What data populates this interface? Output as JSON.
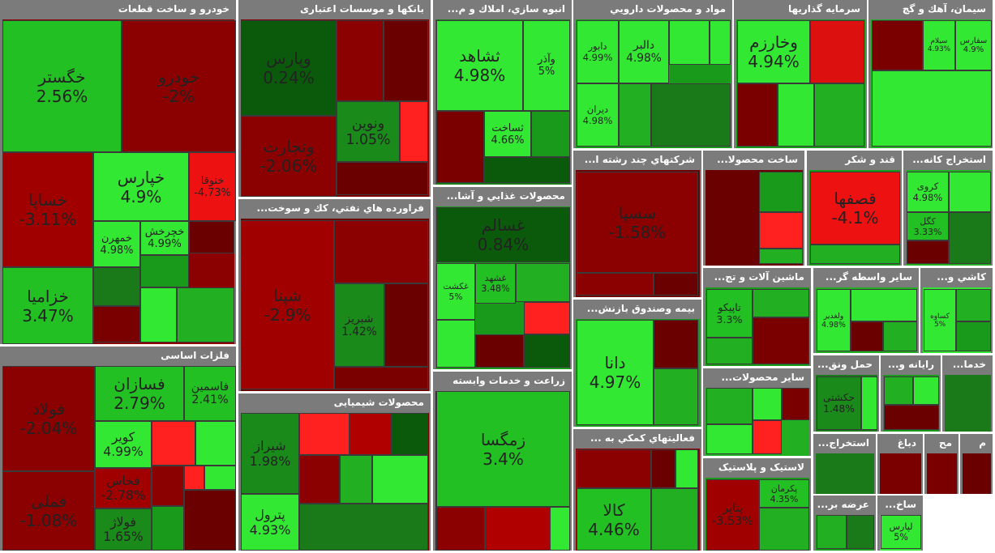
{
  "chart_data": {
    "type": "treemap",
    "sectors": [
      {
        "name": "خودرو و ساخت قطعات",
        "categories": [
          "خگستر",
          "خودرو",
          "خساپا",
          "خزامیا",
          "خپارس",
          "ختوقا",
          "خمهرن",
          "خچرخش"
        ],
        "values": [
          2.56,
          -2,
          -3.11,
          3.47,
          4.9,
          -4.73,
          4.98,
          4.99
        ],
        "value_labels": [
          "2.56%",
          "-2%",
          "-3.11%",
          "3.47%",
          "4.9%",
          "-4.73%",
          "4.98%",
          "4.99%"
        ]
      },
      {
        "name": "بانکها و موسسات اعتباری",
        "categories": [
          "وپارس",
          "وتجارت",
          "ونوین"
        ],
        "values": [
          0.24,
          -2.06,
          1.05
        ],
        "value_labels": [
          "0.24%",
          "-2.06%",
          "1.05%"
        ]
      },
      {
        "name": "فراورده هاي نفتي، كك و سوخت...",
        "categories": [
          "شپنا",
          "شبریز"
        ],
        "values": [
          -2.9,
          1.42
        ],
        "value_labels": [
          "-2.9%",
          "1.42%"
        ]
      },
      {
        "name": "محصولات شیمیایی",
        "categories": [
          "شیراز",
          "پترول"
        ],
        "values": [
          1.98,
          4.93
        ],
        "value_labels": [
          "1.98%",
          "4.93%"
        ]
      },
      {
        "name": "فلزات اساسی",
        "categories": [
          "فولاد",
          "فملی",
          "فسازان",
          "فاسمین",
          "کویر",
          "فخاس",
          "فولاژ"
        ],
        "values": [
          -2.04,
          -1.08,
          2.79,
          2.41,
          4.99,
          -2.78,
          1.65
        ],
        "value_labels": [
          "-2.04%",
          "-1.08%",
          "2.79%",
          "2.41%",
          "4.99%",
          "-2.78%",
          "1.65%"
        ]
      },
      {
        "name": "انبوه سازي، املاك و م...",
        "categories": [
          "ثشاهد",
          "وآذر",
          "ثساخت"
        ],
        "values": [
          4.98,
          5,
          4.66
        ],
        "value_labels": [
          "4.98%",
          "5%",
          "4.66%"
        ]
      },
      {
        "name": "محصولات غذايي و آشا...",
        "categories": [
          "غسالم",
          "غشهد",
          "غکشت"
        ],
        "values": [
          0.84,
          3.48,
          5
        ],
        "value_labels": [
          "0.84%",
          "3.48%",
          "5%"
        ]
      },
      {
        "name": "زراعت و خدمات وابسته",
        "categories": [
          "زمگسا"
        ],
        "values": [
          3.4
        ],
        "value_labels": [
          "3.4%"
        ]
      },
      {
        "name": "مواد و محصولات دارويي",
        "categories": [
          "دابور",
          "دالبر",
          "دیران"
        ],
        "values": [
          4.99,
          4.98,
          4.98
        ],
        "value_labels": [
          "4.99%",
          "4.98%",
          "4.98%"
        ]
      },
      {
        "name": "سرمايه گذاريها",
        "categories": [
          "وخارزم"
        ],
        "values": [
          4.94
        ],
        "value_labels": [
          "4.94%"
        ]
      },
      {
        "name": "سيمان، آهك و گچ",
        "categories": [
          "سیلام",
          "سفارس"
        ],
        "values": [
          4.93,
          4.9
        ],
        "value_labels": [
          "4.93%",
          "4.9%"
        ]
      },
      {
        "name": "شركتهاي چند رشته ا...",
        "categories": [
          "سسپا"
        ],
        "values": [
          -1.58
        ],
        "value_labels": [
          "-1.58%"
        ]
      },
      {
        "name": "بیمه وصندوق بازنش...",
        "categories": [
          "دانا"
        ],
        "values": [
          4.97
        ],
        "value_labels": [
          "4.97%"
        ]
      },
      {
        "name": "فعاليتهاي كمكي به ...",
        "categories": [
          "کالا"
        ],
        "values": [
          4.46
        ],
        "value_labels": [
          "4.46%"
        ]
      },
      {
        "name": "ساخت محصولا..."
      },
      {
        "name": "قند و شکر",
        "categories": [
          "قصفها"
        ],
        "values": [
          -4.1
        ],
        "value_labels": [
          "-4.1%"
        ]
      },
      {
        "name": "استخراج کانه...",
        "categories": [
          "کروی",
          "کگل"
        ],
        "values": [
          4.98,
          3.33
        ],
        "value_labels": [
          "4.98%",
          "3.33%"
        ]
      },
      {
        "name": "ماشين آلات و تج...",
        "categories": [
          "تاپیکو"
        ],
        "values": [
          3.3
        ],
        "value_labels": [
          "3.3%"
        ]
      },
      {
        "name": "ساير واسطه گر...",
        "categories": [
          "ولغدیر"
        ],
        "values": [
          4.98
        ],
        "value_labels": [
          "4.98%"
        ]
      },
      {
        "name": "کاشي و...",
        "categories": [
          "کساوه"
        ],
        "values": [
          5
        ],
        "value_labels": [
          "5%"
        ]
      },
      {
        "name": "ساير محصولات..."
      },
      {
        "name": "حمل ونق...",
        "categories": [
          "حکشتی"
        ],
        "values": [
          1.48
        ],
        "value_labels": [
          "1.48%"
        ]
      },
      {
        "name": "رايانه و..."
      },
      {
        "name": "خدما..."
      },
      {
        "name": "لاستيک و پلاستيک",
        "categories": [
          "پکرمان",
          "پتایر"
        ],
        "values": [
          4.35,
          -3.53
        ],
        "value_labels": [
          "4.35%",
          "-3.53%"
        ]
      },
      {
        "name": "استخراج..."
      },
      {
        "name": "دباغ"
      },
      {
        "name": "مح"
      },
      {
        "name": "م"
      },
      {
        "name": "عرضه بر..."
      },
      {
        "name": "ساخ...",
        "categories": [
          "لپارس"
        ],
        "values": [
          5
        ],
        "value_labels": [
          "5%"
        ]
      }
    ]
  }
}
